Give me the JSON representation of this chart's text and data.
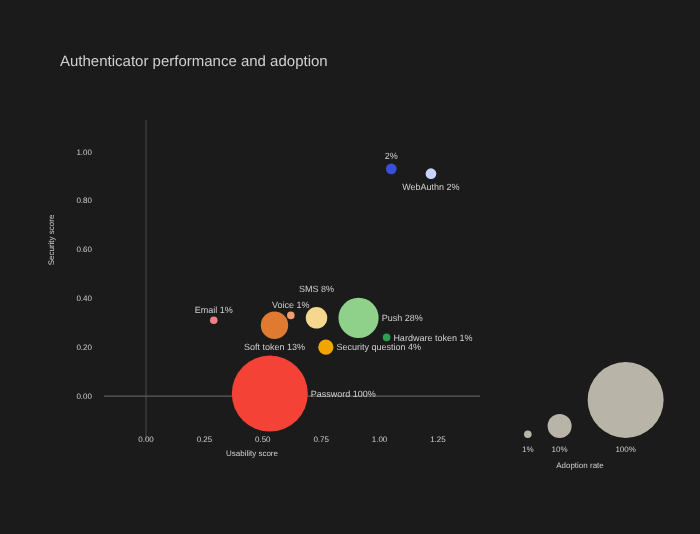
{
  "chart_data": {
    "type": "bubble",
    "title": "Authenticator performance and adoption",
    "xlabel": "Usability score",
    "ylabel": "Security score",
    "legend_title": "Adoption rate",
    "x": [
      0.29,
      0.55,
      0.62,
      0.73,
      0.91,
      1.03,
      0.77,
      0.53,
      1.05,
      1.22
    ],
    "values": [
      0.31,
      0.29,
      0.33,
      0.32,
      0.32,
      0.24,
      0.2,
      0.01,
      0.93,
      0.91
    ],
    "sizes": [
      1,
      13,
      1,
      8,
      28,
      1,
      4,
      100,
      2,
      2
    ],
    "colors": [
      "#f08080",
      "#e07a30",
      "#f0a070",
      "#f5d78e",
      "#8fd18a",
      "#2e9e4f",
      "#f0a500",
      "#f44336",
      "#3a4fd8",
      "#c8d4ff"
    ],
    "value_labels": [
      "Email 1%",
      "Soft token 13%",
      "Voice 1%",
      "SMS 8%",
      "Push 28%",
      "Hardware token 1%",
      "Security question 4%",
      "Password 100%",
      "2%",
      "WebAuthn 2%"
    ],
    "size_legend": [
      {
        "value": 1,
        "label": "1%"
      },
      {
        "value": 10,
        "label": "10%"
      },
      {
        "value": 100,
        "label": "100%"
      }
    ],
    "xlim": [
      -0.18,
      1.43
    ],
    "ylim": [
      -0.18,
      1.13
    ],
    "xticks": [
      {
        "value": 0,
        "label": "0.00"
      },
      0.25,
      {
        "value": 0.5,
        "label": "0.50"
      },
      0.75,
      {
        "value": 1,
        "label": "1.00"
      },
      1.25
    ],
    "yticks": [
      {
        "value": 0,
        "label": "0.00"
      },
      {
        "value": 0.2,
        "label": "0.20"
      },
      {
        "value": 0.4,
        "label": "0.40"
      },
      {
        "value": 0.6,
        "label": "0.60"
      },
      {
        "value": 0.8,
        "label": "0.80"
      },
      {
        "value": 1,
        "label": "1.00"
      }
    ],
    "ref_lines": [
      {
        "axis": "x",
        "value": 0,
        "color": "#444444"
      },
      {
        "axis": "y",
        "value": 0,
        "color": "#5e5e5e"
      }
    ],
    "grid": false
  }
}
